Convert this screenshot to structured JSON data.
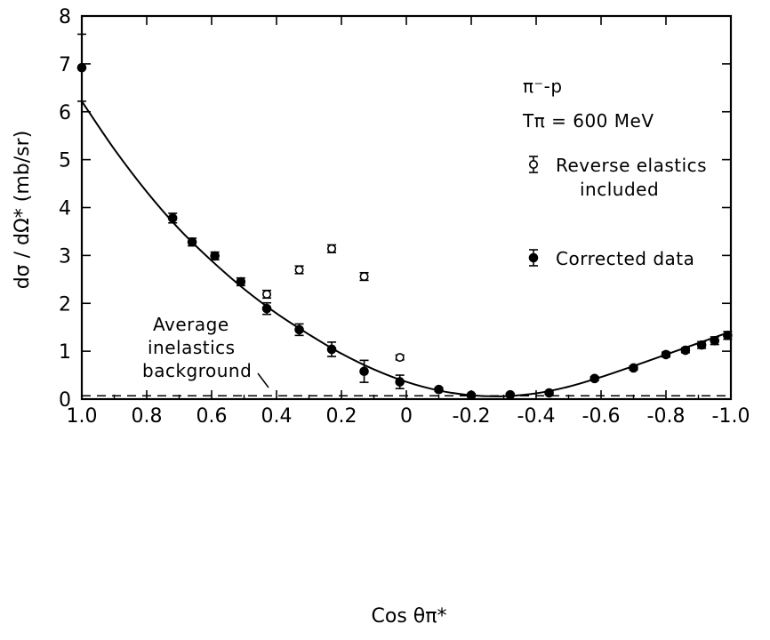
{
  "chart_data": {
    "type": "scatter",
    "xlabel": "Cos θπ*",
    "ylabel": "dσ / dΩ*   (mb/sr)",
    "xlim": [
      1.0,
      -1.0
    ],
    "ylim": [
      0,
      8
    ],
    "x_ticks": [
      1.0,
      0.8,
      0.6,
      0.4,
      0.2,
      0,
      -0.2,
      -0.4,
      -0.6,
      -0.8,
      -1.0
    ],
    "x_tick_labels": [
      "1.0",
      "0.8",
      "0.6",
      "0.4",
      "0.2",
      "0",
      "-0.2",
      "-0.4",
      "-0.6",
      "-0.8",
      "-1.0"
    ],
    "y_ticks": [
      0,
      1,
      2,
      3,
      4,
      5,
      6,
      7,
      8
    ],
    "y_tick_labels": [
      "0",
      "1",
      "2",
      "3",
      "4",
      "5",
      "6",
      "7",
      "8"
    ],
    "annotations": {
      "reaction": "π⁻-p",
      "energy": "Tπ = 600 MeV",
      "background_label": [
        "Average",
        "inelastics",
        "background"
      ]
    },
    "background_level": 0.07,
    "legend": {
      "position": "right",
      "reverse_label": [
        "Reverse elastics",
        "included"
      ],
      "corrected_label": "Corrected data"
    },
    "series": [
      {
        "name": "Corrected data",
        "marker": "filled-circle",
        "points": [
          {
            "x": 1.0,
            "y": 6.92,
            "err": 0.7
          },
          {
            "x": 0.72,
            "y": 3.78,
            "err": 0.1
          },
          {
            "x": 0.66,
            "y": 3.28,
            "err": 0.08
          },
          {
            "x": 0.59,
            "y": 2.99,
            "err": 0.08
          },
          {
            "x": 0.51,
            "y": 2.45,
            "err": 0.08
          },
          {
            "x": 0.43,
            "y": 1.89,
            "err": 0.12
          },
          {
            "x": 0.33,
            "y": 1.45,
            "err": 0.12
          },
          {
            "x": 0.23,
            "y": 1.04,
            "err": 0.15
          },
          {
            "x": 0.13,
            "y": 0.58,
            "err": 0.23
          },
          {
            "x": 0.02,
            "y": 0.36,
            "err": 0.14
          },
          {
            "x": -0.1,
            "y": 0.2,
            "err": 0.04
          },
          {
            "x": -0.2,
            "y": 0.08,
            "err": 0.03
          },
          {
            "x": -0.32,
            "y": 0.09,
            "err": 0.03
          },
          {
            "x": -0.44,
            "y": 0.13,
            "err": 0.03
          },
          {
            "x": -0.58,
            "y": 0.43,
            "err": 0.04
          },
          {
            "x": -0.7,
            "y": 0.65,
            "err": 0.04
          },
          {
            "x": -0.8,
            "y": 0.93,
            "err": 0.05
          },
          {
            "x": -0.86,
            "y": 1.02,
            "err": 0.05
          },
          {
            "x": -0.91,
            "y": 1.13,
            "err": 0.07
          },
          {
            "x": -0.95,
            "y": 1.22,
            "err": 0.08
          },
          {
            "x": -0.99,
            "y": 1.33,
            "err": 0.08
          }
        ]
      },
      {
        "name": "Reverse elastics included",
        "marker": "open-circle",
        "points": [
          {
            "x": 0.43,
            "y": 2.19,
            "err": 0.08
          },
          {
            "x": 0.33,
            "y": 2.7,
            "err": 0.08
          },
          {
            "x": 0.23,
            "y": 3.14,
            "err": 0.08
          },
          {
            "x": 0.13,
            "y": 2.56,
            "err": 0.08
          },
          {
            "x": 0.02,
            "y": 0.87,
            "err": 0.05
          }
        ]
      }
    ],
    "fit_curve": {
      "x": [
        1.0,
        0.9,
        0.8,
        0.7,
        0.6,
        0.5,
        0.4,
        0.3,
        0.2,
        0.1,
        0.0,
        -0.1,
        -0.2,
        -0.3,
        -0.4,
        -0.5,
        -0.6,
        -0.7,
        -0.8,
        -0.9,
        -1.0
      ],
      "y": [
        6.22,
        5.22,
        4.33,
        3.55,
        2.89,
        2.3,
        1.79,
        1.35,
        0.95,
        0.62,
        0.36,
        0.18,
        0.08,
        0.06,
        0.12,
        0.26,
        0.46,
        0.69,
        0.93,
        1.17,
        1.41
      ]
    }
  }
}
